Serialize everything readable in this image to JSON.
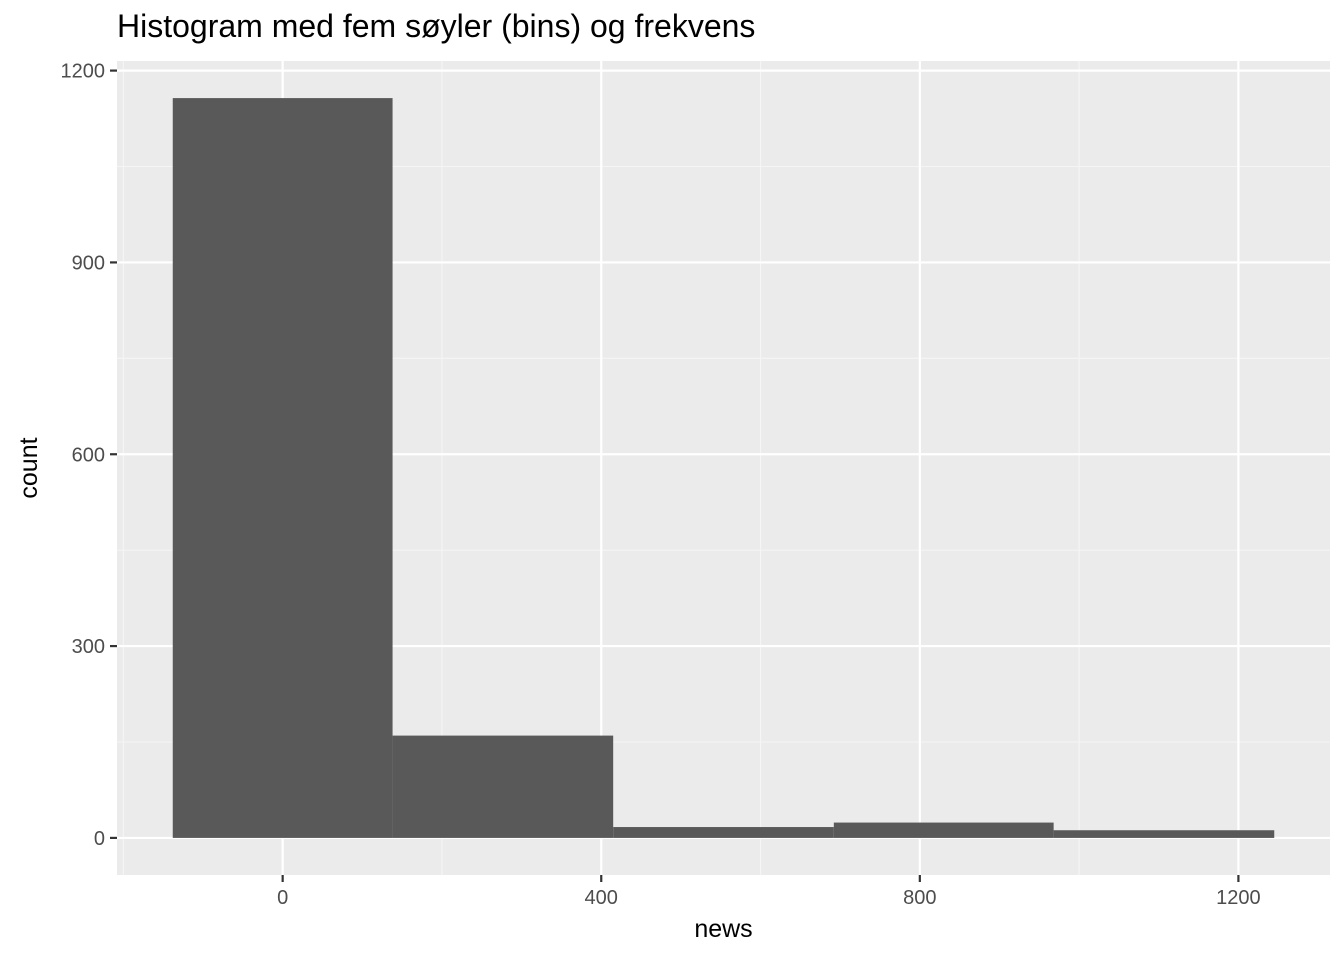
{
  "chart_data": {
    "type": "bar",
    "title": "Histogram med fem søyler (bins) og frekvens",
    "xlabel": "news",
    "ylabel": "count",
    "bins": [
      {
        "x_start": -138,
        "x_end": 138,
        "count": 1157
      },
      {
        "x_start": 138,
        "x_end": 415,
        "count": 160
      },
      {
        "x_start": 415,
        "x_end": 692,
        "count": 17
      },
      {
        "x_start": 692,
        "x_end": 968,
        "count": 24
      },
      {
        "x_start": 968,
        "x_end": 1245,
        "count": 12
      }
    ],
    "xlim": [
      -208,
      1315
    ],
    "ylim": [
      -58,
      1215
    ],
    "x_ticks": [
      0,
      400,
      800,
      1200
    ],
    "y_ticks": [
      0,
      300,
      600,
      900,
      1200
    ],
    "x_tick_labels": [
      "0",
      "400",
      "800",
      "1200"
    ],
    "y_tick_labels": [
      "0",
      "300",
      "600",
      "900",
      "1200"
    ],
    "grid": true,
    "colors": {
      "panel_background": "#ebebeb",
      "grid_major": "#ffffff",
      "grid_minor": "#f5f5f5",
      "bar_fill": "#595959",
      "tick_color": "#333333"
    }
  }
}
